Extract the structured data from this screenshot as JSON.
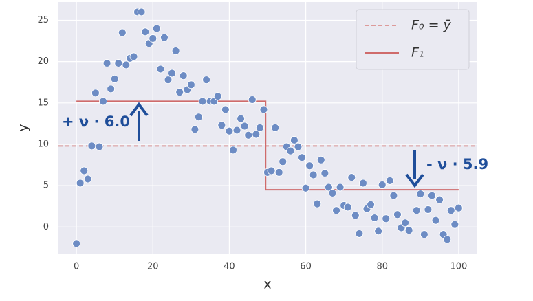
{
  "chart_data": {
    "type": "scatter",
    "xlabel": "x",
    "ylabel": "y",
    "xlim": [
      -4.7,
      104.7
    ],
    "ylim": [
      -3.3,
      27.2
    ],
    "xticks": [
      0,
      20,
      40,
      60,
      80,
      100
    ],
    "yticks": [
      0,
      5,
      10,
      15,
      20,
      25
    ],
    "grid": true,
    "legend": "upper right",
    "point_color": "#6d8cc4",
    "x": [
      0,
      1,
      2,
      3,
      4,
      5,
      6,
      7,
      8,
      9,
      10,
      11,
      12,
      13,
      14,
      15,
      16,
      17,
      18,
      19,
      20,
      21,
      22,
      23,
      24,
      25,
      26,
      27,
      28,
      29,
      30,
      31,
      32,
      33,
      34,
      35,
      36,
      37,
      38,
      39,
      40,
      41,
      42,
      43,
      44,
      45,
      46,
      47,
      48,
      49,
      50,
      51,
      52,
      53,
      54,
      55,
      56,
      57,
      58,
      59,
      60,
      61,
      62,
      63,
      64,
      65,
      66,
      67,
      68,
      69,
      70,
      71,
      72,
      73,
      74,
      75,
      76,
      77,
      78,
      79,
      80,
      81,
      82,
      83,
      84,
      85,
      86,
      87,
      89,
      90,
      91,
      92,
      93,
      94,
      95,
      96,
      97,
      98,
      99,
      100
    ],
    "values": [
      -2.0,
      5.3,
      6.8,
      5.8,
      9.8,
      16.2,
      9.7,
      15.2,
      19.8,
      16.7,
      17.9,
      19.8,
      23.5,
      19.6,
      20.4,
      20.6,
      26,
      26,
      23.6,
      22.2,
      22.8,
      24,
      19.1,
      22.9,
      17.8,
      18.6,
      21.3,
      16.3,
      18.3,
      16.6,
      17.2,
      11.8,
      13.3,
      15.2,
      17.8,
      15.2,
      15.2,
      15.8,
      12.3,
      14.2,
      11.6,
      9.3,
      11.7,
      13.1,
      12.2,
      11.1,
      15.4,
      11.2,
      12,
      14.2,
      6.6,
      6.8,
      12,
      6.6,
      7.9,
      9.7,
      9.2,
      10.5,
      9.7,
      8.4,
      4.7,
      7.4,
      6.3,
      2.8,
      8.1,
      6.5,
      4.8,
      4.1,
      2,
      4.8,
      2.6,
      2.4,
      6,
      1.4,
      -0.8,
      5.3,
      2.2,
      2.7,
      1.1,
      -0.5,
      5.1,
      1,
      5.6,
      3.8,
      1.5,
      -0.1,
      0.5,
      -0.4,
      2.0,
      4.0,
      -0.9,
      2.1,
      3.8,
      0.8,
      3.3,
      -0.9,
      -1.5,
      2,
      0.3,
      2.3
    ],
    "lines": [
      {
        "name": "F₀ = ȳ",
        "color": "#dc9a9a",
        "dashed": true,
        "hline": 9.8
      },
      {
        "name": "F₁",
        "color": "#cf6b6b",
        "dashed": false,
        "x": [
          0,
          49.5,
          49.5,
          100
        ],
        "values": [
          15.2,
          15.2,
          4.5,
          4.5
        ]
      }
    ],
    "annotations": [
      "+ ν · 6.0",
      "- ν · 5.9"
    ]
  }
}
